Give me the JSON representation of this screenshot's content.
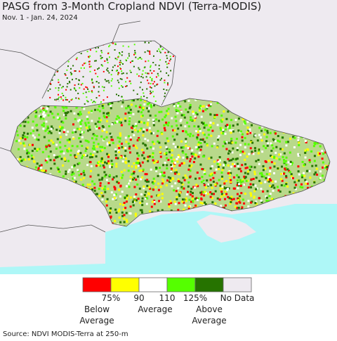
{
  "header": {
    "title": "PASG from 3-Month Cropland NDVI (Terra-MODIS)",
    "subtitle": "Nov. 1 - Jan. 24, 2024"
  },
  "legend": {
    "colors": [
      "#ff0000",
      "#ffff00",
      "#ffffff",
      "#55ff00",
      "#267300",
      "#eeeaf0"
    ],
    "tick_labels": [
      "75%",
      "90",
      "110",
      "125%",
      "No Data"
    ],
    "group_labels": [
      "Below Average",
      "Average",
      "Above Average"
    ]
  },
  "footer": {
    "source": "Source: NDVI MODIS-Terra at 250-m"
  }
}
